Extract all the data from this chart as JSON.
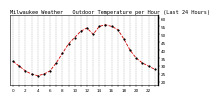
{
  "title": "Milwaukee Weather   Outdoor Temperature per Hour (Last 24 Hours)",
  "hours": [
    0,
    1,
    2,
    3,
    4,
    5,
    6,
    7,
    8,
    9,
    10,
    11,
    12,
    13,
    14,
    15,
    16,
    17,
    18,
    19,
    20,
    21,
    22,
    23
  ],
  "temps": [
    33,
    30,
    27,
    25,
    24,
    25,
    27,
    32,
    38,
    44,
    48,
    52,
    54,
    50,
    55,
    56,
    55,
    53,
    47,
    40,
    35,
    32,
    30,
    28
  ],
  "line_color": "#cc0000",
  "marker_color": "#000000",
  "marker_style": "o",
  "line_style": "--",
  "background_color": "#ffffff",
  "ylim": [
    18,
    62
  ],
  "yticks": [
    20,
    25,
    30,
    35,
    40,
    45,
    50,
    55,
    60
  ],
  "ytick_labels": [
    "20",
    "25",
    "30",
    "35",
    "40",
    "45",
    "50",
    "55",
    "60"
  ],
  "grid_color": "#777777",
  "grid_style": "--",
  "title_fontsize": 3.8,
  "tick_fontsize": 3.0
}
